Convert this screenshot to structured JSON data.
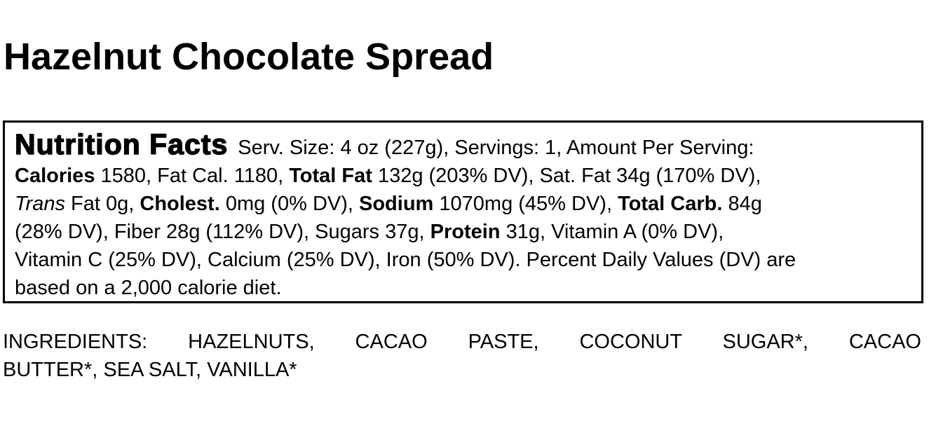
{
  "page": {
    "title": "Hazelnut Chocolate Spread"
  },
  "colors": {
    "text": "#000000",
    "background": "#ffffff",
    "panel_border": "#000000"
  },
  "nutrition_panel": {
    "heading": "Nutrition Facts",
    "serving_info": "Serv. Size: 4 oz (227g), Servings: 1, Amount Per Serving:",
    "values": {
      "calories": "1580",
      "fat_calories": "1180",
      "total_fat": "132g (203% DV)",
      "saturated_fat": "34g (170% DV)",
      "trans_fat": "0g",
      "cholesterol": "0mg (0% DV)",
      "sodium": "1070mg (45% DV)",
      "total_carb": "84g (28% DV)",
      "fiber": "28g (112% DV)",
      "sugars": "37g",
      "protein": "31g",
      "vitamin_a": "0% DV",
      "vitamin_c": "25% DV",
      "calcium": "25% DV",
      "iron": "50% DV",
      "footnote": "Percent Daily Values (DV) are based on a 2,000 calorie diet."
    },
    "lines": [
      [
        {
          "t": "Nutrition Facts",
          "s": "heavy"
        },
        {
          "t": "Serv. Size: 4 oz (227g), Servings: 1, Amount Per Serving:",
          "s": "normal"
        }
      ],
      [
        {
          "t": "Calories",
          "s": "bold"
        },
        {
          "t": " 1580, Fat Cal. 1180, ",
          "s": "normal"
        },
        {
          "t": "Total Fat",
          "s": "bold"
        },
        {
          "t": " 132g (203% DV), Sat. Fat 34g (170% DV),",
          "s": "normal"
        }
      ],
      [
        {
          "t": "Trans",
          "s": "italic"
        },
        {
          "t": " Fat 0g, ",
          "s": "normal"
        },
        {
          "t": "Cholest.",
          "s": "bold"
        },
        {
          "t": " 0mg (0% DV), ",
          "s": "normal"
        },
        {
          "t": "Sodium",
          "s": "bold"
        },
        {
          "t": " 1070mg (45% DV), ",
          "s": "normal"
        },
        {
          "t": "Total Carb.",
          "s": "bold"
        },
        {
          "t": " 84g",
          "s": "normal"
        }
      ],
      [
        {
          "t": "(28% DV), Fiber 28g (112% DV), Sugars 37g, ",
          "s": "normal"
        },
        {
          "t": "Protein",
          "s": "bold"
        },
        {
          "t": " 31g, Vitamin A (0% DV),",
          "s": "normal"
        }
      ],
      [
        {
          "t": "Vitamin C (25% DV), Calcium (25% DV), Iron (50% DV). Percent Daily Values (DV) are",
          "s": "normal"
        }
      ],
      [
        {
          "t": "based on a 2,000 calorie diet.",
          "s": "normal"
        }
      ]
    ]
  },
  "ingredients": {
    "label": "INGREDIENTS:",
    "items": [
      "HAZELNUTS",
      "CACAO PASTE",
      "COCONUT SUGAR*",
      "CACAO BUTTER*",
      "SEA SALT",
      "VANILLA*"
    ],
    "lines": [
      {
        "t": "INGREDIENTS: HAZELNUTS, CACAO PASTE, COCONUT SUGAR*, CACAO",
        "justify": true
      },
      {
        "t": "BUTTER*, SEA SALT, VANILLA*",
        "justify": false
      }
    ]
  }
}
